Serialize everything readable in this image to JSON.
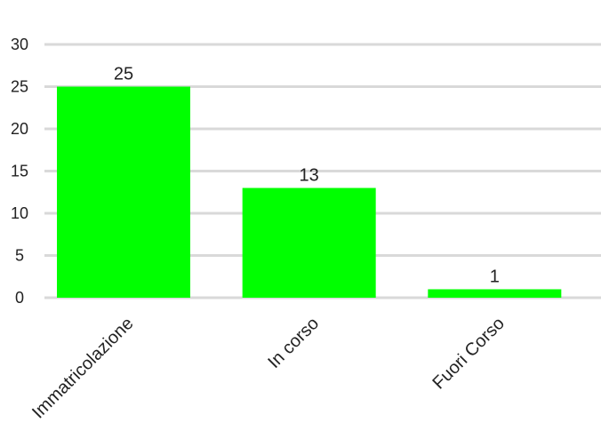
{
  "chart_data": {
    "type": "bar",
    "title": "",
    "xlabel": "",
    "ylabel": "",
    "categories": [
      "Immatricolazione",
      "In corso",
      "Fuori Corso"
    ],
    "values": [
      25,
      13,
      1
    ],
    "ylim": [
      0,
      30
    ],
    "yticks": [
      0,
      5,
      10,
      15,
      20,
      25,
      30
    ],
    "grid": true,
    "legend": "none",
    "bar_color": "#00ff00",
    "grid_color": "#d9d9d9"
  }
}
